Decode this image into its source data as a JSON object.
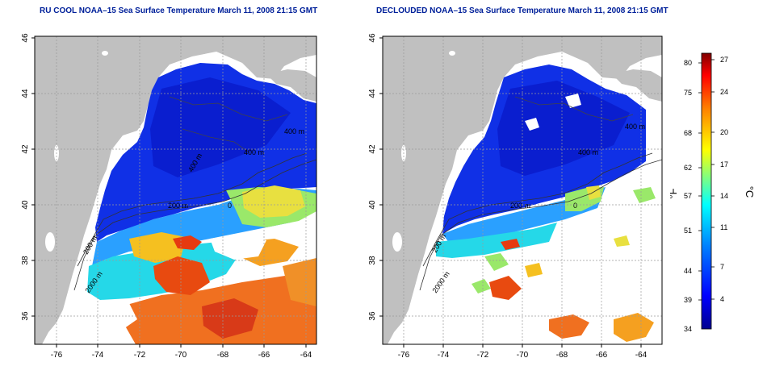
{
  "left_map": {
    "title": "RU COOL NOAA–15 Sea Surface Temperature March 11, 2008 21:15 GMT",
    "lon_ticks": [
      "-76",
      "-74",
      "-72",
      "-70",
      "-68",
      "-66",
      "-64"
    ],
    "lat_ticks": [
      "46",
      "44",
      "42",
      "40",
      "38",
      "36"
    ],
    "isobath_labels": [
      "400 m",
      "400 m",
      "400 m",
      "200 m",
      "200 m",
      "2000 m",
      "0"
    ]
  },
  "right_map": {
    "title": "DECLOUDED NOAA–15 Sea Surface Temperature March 11, 2008 21:15 GMT",
    "lon_ticks": [
      "-76",
      "-74",
      "-72",
      "-70",
      "-68",
      "-66",
      "-64"
    ],
    "lat_ticks": [
      "46",
      "44",
      "42",
      "40",
      "38",
      "36"
    ],
    "isobath_labels": [
      "400 m",
      "400 m",
      "200 m",
      "200 m",
      "2000 m",
      "0"
    ]
  },
  "colorbar": {
    "fahrenheit_label": "°F",
    "celsius_label": "°C",
    "fahrenheit_ticks": [
      "80",
      "75",
      "68",
      "62",
      "57",
      "51",
      "44",
      "39",
      "34"
    ],
    "celsius_ticks": [
      "27",
      "24",
      "20",
      "17",
      "14",
      "11",
      "7",
      "4"
    ],
    "colors": [
      "#00008f",
      "#0000ff",
      "#0080ff",
      "#00ffff",
      "#80ff80",
      "#ffff00",
      "#ff8000",
      "#ff0000",
      "#800000"
    ]
  },
  "colors": {
    "land": "#c0c0c0",
    "cold_water": "#0a2ae0",
    "title_text": "#00209a"
  }
}
